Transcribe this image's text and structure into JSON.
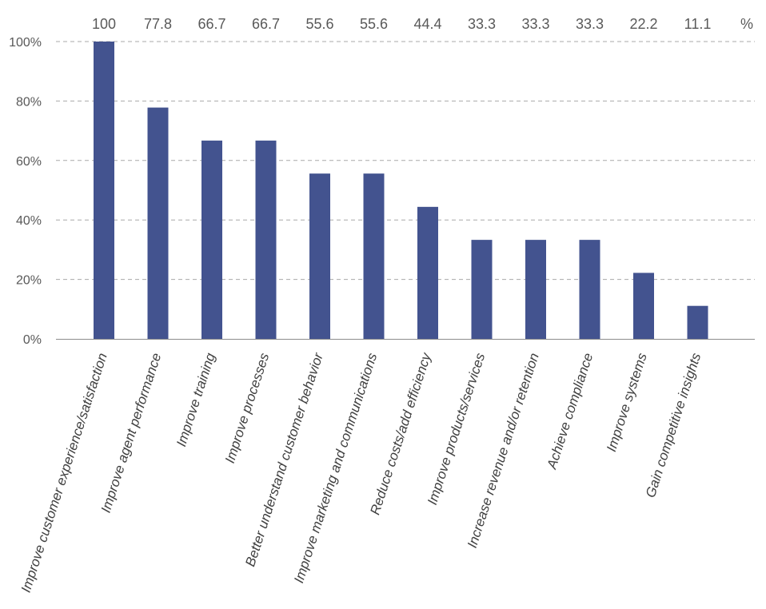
{
  "chart_data": {
    "type": "bar",
    "categories": [
      "Improve customer experience/satisfaction",
      "Improve agent performance",
      "Improve training",
      "Improve processes",
      "Better understand customer behavior",
      "Improve marketing and communications",
      "Reduce costs/add efficiency",
      "Improve products/services",
      "Increase revenue and/or retention",
      "Achieve compliance",
      "Improve systems",
      "Gain competitive insights"
    ],
    "values": [
      100,
      77.8,
      66.7,
      66.7,
      55.6,
      55.6,
      44.4,
      33.3,
      33.3,
      33.3,
      22.2,
      11.1
    ],
    "value_labels": [
      "100",
      "77.8",
      "66.7",
      "66.7",
      "55.6",
      "55.6",
      "44.4",
      "33.3",
      "33.3",
      "33.3",
      "22.2",
      "11.1"
    ],
    "value_unit_label": "%",
    "y_ticks": [
      {
        "value": 0,
        "label": "0%"
      },
      {
        "value": 20,
        "label": "20%"
      },
      {
        "value": 40,
        "label": "40%"
      },
      {
        "value": 60,
        "label": "60%"
      },
      {
        "value": 80,
        "label": "80%"
      },
      {
        "value": 100,
        "label": "100%"
      }
    ],
    "ylim": [
      0,
      100
    ],
    "grid": true,
    "bar_color": "#43538f",
    "title": "",
    "xlabel": "",
    "ylabel": ""
  }
}
